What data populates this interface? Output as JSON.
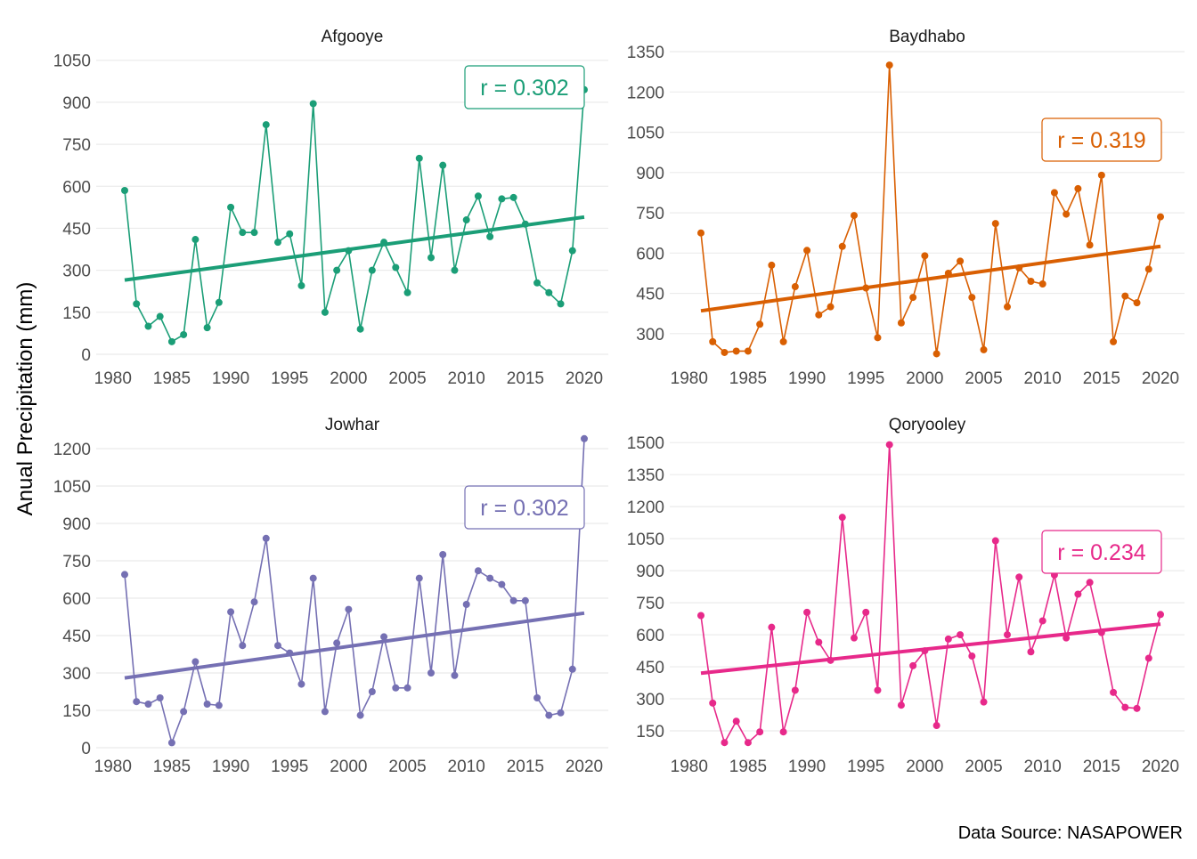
{
  "figure": {
    "ylabel": "Anual Precipitation (mm)",
    "caption": "Data Source: NASAPOWER"
  },
  "chart_data": [
    {
      "type": "line",
      "title": "Afgooye",
      "color": "#1b9e77",
      "annotation": "r = 0.302",
      "xlim": [
        1980,
        2020
      ],
      "ylim": [
        0,
        1100
      ],
      "x_ticks": [
        1980,
        1985,
        1990,
        1995,
        2000,
        2005,
        2010,
        2015,
        2020
      ],
      "y_ticks": [
        0,
        150,
        300,
        450,
        600,
        750,
        900,
        1050
      ],
      "x": [
        1981,
        1982,
        1983,
        1984,
        1985,
        1986,
        1987,
        1988,
        1989,
        1990,
        1991,
        1992,
        1993,
        1994,
        1995,
        1996,
        1997,
        1998,
        1999,
        2000,
        2001,
        2002,
        2003,
        2004,
        2005,
        2006,
        2007,
        2008,
        2009,
        2010,
        2011,
        2012,
        2013,
        2014,
        2015,
        2016,
        2017,
        2018,
        2019,
        2020
      ],
      "y": [
        585,
        180,
        100,
        135,
        45,
        70,
        410,
        95,
        185,
        525,
        435,
        435,
        820,
        400,
        430,
        245,
        895,
        150,
        300,
        370,
        90,
        300,
        400,
        310,
        220,
        700,
        345,
        675,
        300,
        480,
        565,
        420,
        555,
        560,
        465,
        255,
        220,
        180,
        370,
        945
      ],
      "trend": {
        "x": [
          1981,
          2020
        ],
        "y": [
          265,
          490
        ]
      }
    },
    {
      "type": "line",
      "title": "Baydhabo",
      "color": "#d95f02",
      "annotation": "r = 0.319",
      "xlim": [
        1980,
        2020
      ],
      "ylim": [
        200,
        1370
      ],
      "x_ticks": [
        1980,
        1985,
        1990,
        1995,
        2000,
        2005,
        2010,
        2015,
        2020
      ],
      "y_ticks": [
        300,
        450,
        600,
        750,
        900,
        1050,
        1200,
        1350
      ],
      "x": [
        1981,
        1982,
        1983,
        1984,
        1985,
        1986,
        1987,
        1988,
        1989,
        1990,
        1991,
        1992,
        1993,
        1994,
        1995,
        1996,
        1997,
        1998,
        1999,
        2000,
        2001,
        2002,
        2003,
        2004,
        2005,
        2006,
        2007,
        2008,
        2009,
        2010,
        2011,
        2012,
        2013,
        2014,
        2015,
        2016,
        2017,
        2018,
        2019,
        2020
      ],
      "y": [
        675,
        270,
        230,
        235,
        235,
        335,
        555,
        270,
        475,
        610,
        370,
        400,
        625,
        740,
        470,
        285,
        1300,
        340,
        435,
        590,
        225,
        525,
        570,
        435,
        240,
        710,
        400,
        545,
        495,
        485,
        825,
        745,
        840,
        630,
        890,
        270,
        440,
        415,
        540,
        735
      ],
      "trend": {
        "x": [
          1981,
          2020
        ],
        "y": [
          385,
          625
        ]
      }
    },
    {
      "type": "line",
      "title": "Jowhar",
      "color": "#7570b3",
      "annotation": "r = 0.302",
      "xlim": [
        1980,
        2020
      ],
      "ylim": [
        0,
        1250
      ],
      "x_ticks": [
        1980,
        1985,
        1990,
        1995,
        2000,
        2005,
        2010,
        2015,
        2020
      ],
      "y_ticks": [
        0,
        150,
        300,
        450,
        600,
        750,
        900,
        1050,
        1200
      ],
      "x": [
        1981,
        1982,
        1983,
        1984,
        1985,
        1986,
        1987,
        1988,
        1989,
        1990,
        1991,
        1992,
        1993,
        1994,
        1995,
        1996,
        1997,
        1998,
        1999,
        2000,
        2001,
        2002,
        2003,
        2004,
        2005,
        2006,
        2007,
        2008,
        2009,
        2010,
        2011,
        2012,
        2013,
        2014,
        2015,
        2016,
        2017,
        2018,
        2019,
        2020
      ],
      "y": [
        695,
        185,
        175,
        200,
        20,
        145,
        345,
        175,
        170,
        545,
        410,
        585,
        840,
        410,
        380,
        255,
        680,
        145,
        420,
        555,
        130,
        225,
        445,
        240,
        240,
        680,
        300,
        775,
        290,
        575,
        710,
        680,
        655,
        590,
        590,
        200,
        130,
        140,
        315,
        1240
      ],
      "trend": {
        "x": [
          1981,
          2020
        ],
        "y": [
          280,
          540
        ]
      }
    },
    {
      "type": "line",
      "title": "Qoryooley",
      "color": "#e7298a",
      "annotation": "r = 0.234",
      "xlim": [
        1980,
        2020
      ],
      "ylim": [
        50,
        1530
      ],
      "x_ticks": [
        1980,
        1985,
        1990,
        1995,
        2000,
        2005,
        2010,
        2015,
        2020
      ],
      "y_ticks": [
        150,
        300,
        450,
        600,
        750,
        900,
        1050,
        1200,
        1350,
        1500
      ],
      "x": [
        1981,
        1982,
        1983,
        1984,
        1985,
        1986,
        1987,
        1988,
        1989,
        1990,
        1991,
        1992,
        1993,
        1994,
        1995,
        1996,
        1997,
        1998,
        1999,
        2000,
        2001,
        2002,
        2003,
        2004,
        2005,
        2006,
        2007,
        2008,
        2009,
        2010,
        2011,
        2012,
        2013,
        2014,
        2015,
        2016,
        2017,
        2018,
        2019,
        2020
      ],
      "y": [
        690,
        280,
        95,
        195,
        95,
        145,
        635,
        145,
        340,
        705,
        565,
        480,
        1150,
        585,
        705,
        340,
        1490,
        270,
        455,
        525,
        175,
        580,
        600,
        500,
        285,
        1040,
        600,
        870,
        520,
        665,
        880,
        585,
        790,
        845,
        610,
        330,
        260,
        255,
        490,
        695
      ],
      "trend": {
        "x": [
          1981,
          2020
        ],
        "y": [
          420,
          650
        ]
      }
    }
  ]
}
